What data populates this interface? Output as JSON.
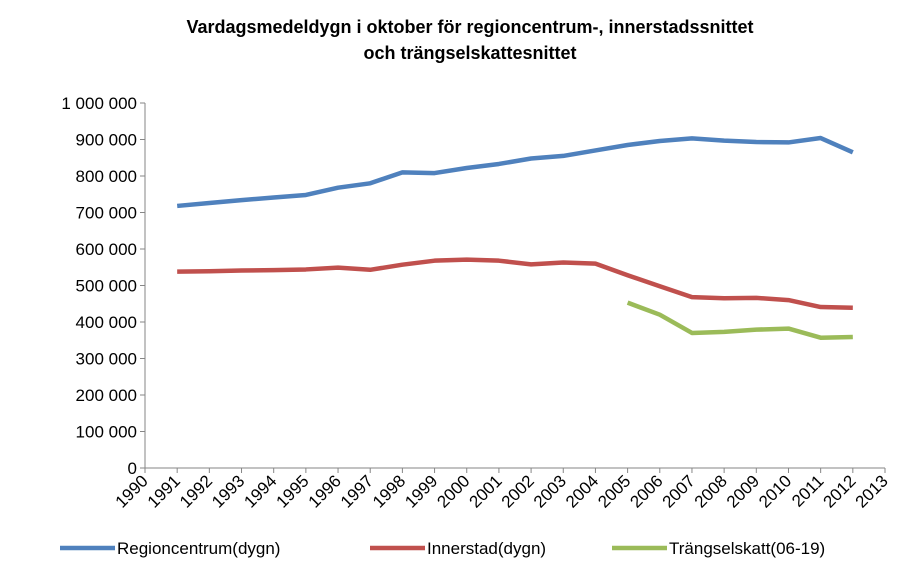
{
  "chart_data": {
    "type": "line",
    "title": [
      "Vardagsmedeldygn i oktober för regioncentrum-, innerstadssnittet",
      "och trängselskattesnittet"
    ],
    "x": [
      1991,
      1992,
      1993,
      1994,
      1995,
      1996,
      1997,
      1998,
      1999,
      2000,
      2001,
      2002,
      2003,
      2004,
      2005,
      2006,
      2007,
      2008,
      2009,
      2010,
      2011,
      2012
    ],
    "series": [
      {
        "name": "Regioncentrum(dygn)",
        "color": "#4f81bd",
        "values": [
          718000,
          726000,
          734000,
          741000,
          748000,
          768000,
          780000,
          810000,
          808000,
          822000,
          833000,
          848000,
          855000,
          870000,
          885000,
          896000,
          903000,
          897000,
          893000,
          892000,
          904000,
          865000
        ]
      },
      {
        "name": "Innerstad(dygn)",
        "color": "#c0504d",
        "values": [
          538000,
          539000,
          541000,
          542000,
          544000,
          549000,
          543000,
          557000,
          568000,
          571000,
          568000,
          558000,
          563000,
          560000,
          528000,
          498000,
          468000,
          465000,
          466000,
          460000,
          441000,
          439000
        ]
      },
      {
        "name": "Trängselskatt(06-19)",
        "color": "#9bbb59",
        "values": [
          null,
          null,
          null,
          null,
          null,
          null,
          null,
          null,
          null,
          null,
          null,
          null,
          null,
          null,
          453000,
          420000,
          370000,
          373000,
          379000,
          382000,
          357000,
          359000
        ]
      }
    ],
    "xlim": [
      1990,
      2013
    ],
    "xticks": [
      1990,
      1991,
      1992,
      1993,
      1994,
      1995,
      1996,
      1997,
      1998,
      1999,
      2000,
      2001,
      2002,
      2003,
      2004,
      2005,
      2006,
      2007,
      2008,
      2009,
      2010,
      2011,
      2012,
      2013
    ],
    "ylim": [
      0,
      1000000
    ],
    "yticks": [
      0,
      {
        "value": 100000,
        "label": "100 000"
      },
      {
        "value": 200000,
        "label": "200 000"
      },
      {
        "value": 300000,
        "label": "300 000"
      },
      {
        "value": 400000,
        "label": "400 000"
      },
      {
        "value": 500000,
        "label": "500 000"
      },
      {
        "value": 600000,
        "label": "600 000"
      },
      {
        "value": 700000,
        "label": "700 000"
      },
      {
        "value": 800000,
        "label": "800 000"
      },
      {
        "value": 900000,
        "label": "900 000"
      },
      {
        "value": 1000000,
        "label": "1 000 000"
      }
    ],
    "legend": "bottom"
  }
}
